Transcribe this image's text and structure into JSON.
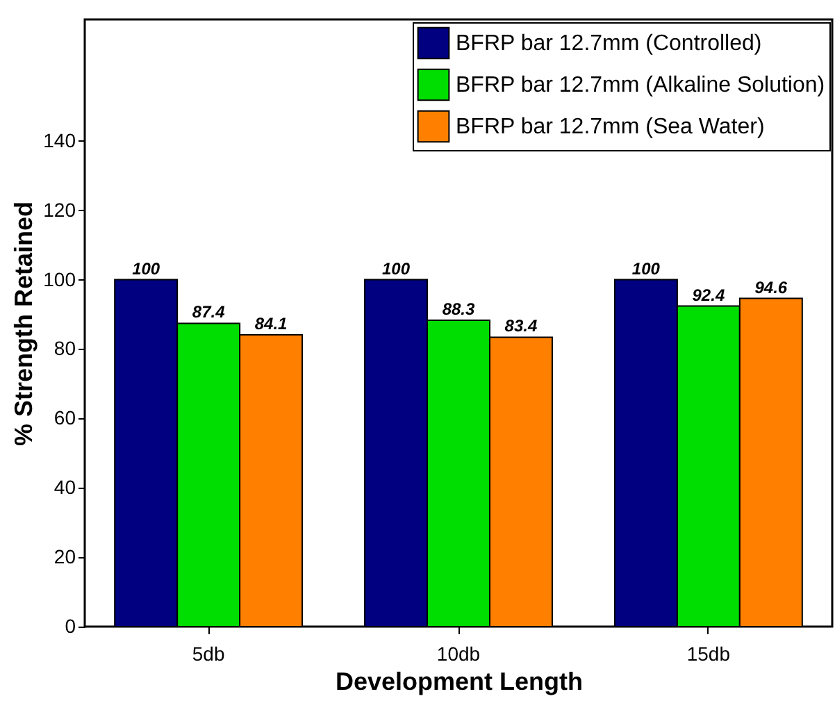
{
  "chart_data": {
    "type": "bar",
    "xlabel": "Development Length",
    "ylabel": "% Strength Retained",
    "categories": [
      "5db",
      "10db",
      "15db"
    ],
    "series": [
      {
        "name": "BFRP bar 12.7mm (Controlled)",
        "color": "#000080",
        "values": [
          100,
          100,
          100
        ]
      },
      {
        "name": "BFRP bar 12.7mm (Alkaline Solution)",
        "color": "#00dd00",
        "values": [
          87.4,
          88.3,
          92.4
        ]
      },
      {
        "name": "BFRP bar 12.7mm (Sea Water)",
        "color": "#ff8000",
        "values": [
          84.1,
          83.4,
          94.6
        ]
      }
    ],
    "ylim": [
      0,
      175
    ],
    "yticks": [
      0,
      20,
      40,
      60,
      80,
      100,
      120,
      140
    ],
    "grid": false,
    "legend": "top right",
    "data_labels": true
  }
}
